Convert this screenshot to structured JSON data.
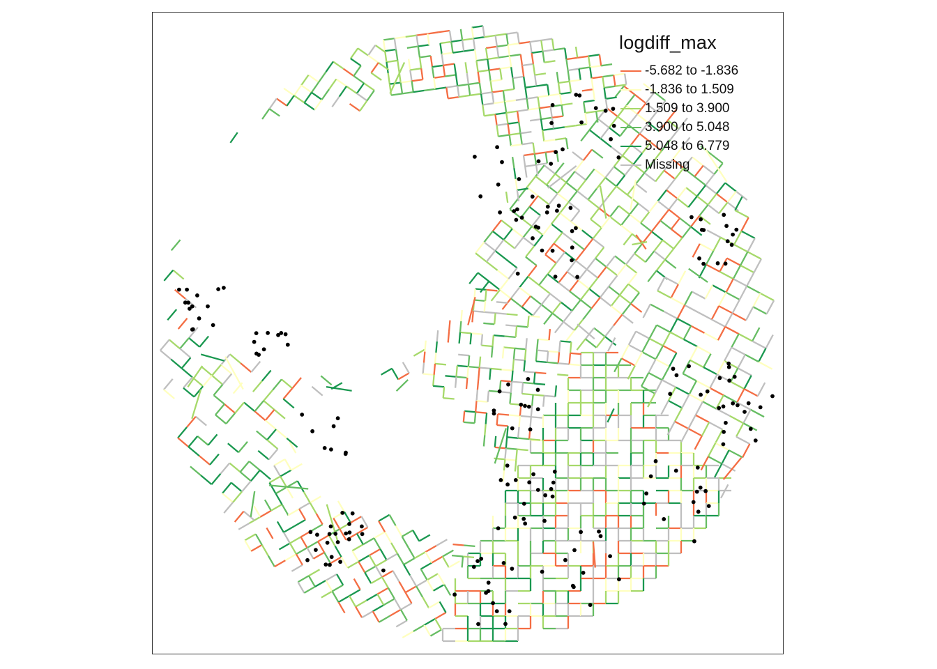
{
  "legend": {
    "title": "logdiff_max",
    "items": [
      {
        "label": "-5.682 to -1.836",
        "color": "#f46d43"
      },
      {
        "label": "-1.836 to 1.509",
        "color": "#ffffbf"
      },
      {
        "label": "1.509 to 3.900",
        "color": "#a6d96a"
      },
      {
        "label": "3.900 to 5.048",
        "color": "#66bd63"
      },
      {
        "label": "5.048 to 6.779",
        "color": "#1a9850"
      },
      {
        "label": "Missing",
        "color": "#bfbfbf"
      }
    ]
  },
  "style": {
    "frame_color": "#333333",
    "point_color": "#000000",
    "background": "#ffffff"
  }
}
